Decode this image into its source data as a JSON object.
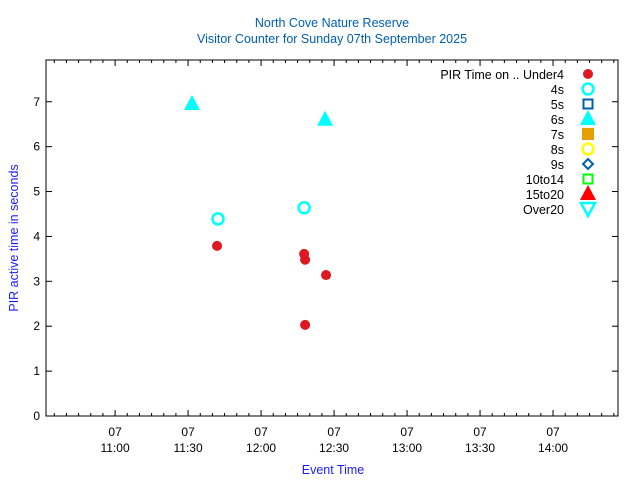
{
  "chart_data": {
    "type": "scatter",
    "title": "North Cove Nature Reserve",
    "subtitle": "Visitor Counter for Sunday 07th September 2025",
    "xlabel": "Event Time",
    "ylabel": "PIR active time in seconds",
    "legend_title": "PIR Time on ..",
    "legend_placement": "top-right",
    "xlim_minutes_from_11": [
      -28.4,
      206.7
    ],
    "ylim": [
      0,
      7.93
    ],
    "yticks": [
      0,
      1,
      2,
      3,
      4,
      5,
      6,
      7
    ],
    "xticks": [
      {
        "minutes": 0,
        "day": "07",
        "time": "11:00"
      },
      {
        "minutes": 30,
        "day": "07",
        "time": "11:30"
      },
      {
        "minutes": 60,
        "day": "07",
        "time": "12:00"
      },
      {
        "minutes": 90,
        "day": "07",
        "time": "12:30"
      },
      {
        "minutes": 120,
        "day": "07",
        "time": "13:00"
      },
      {
        "minutes": 150,
        "day": "07",
        "time": "13:30"
      },
      {
        "minutes": 180,
        "day": "07",
        "time": "14:00"
      }
    ],
    "series": [
      {
        "name": "Under4",
        "color": "#dd181f",
        "marker": "filled-circle",
        "points": [
          [
            41.9,
            3.79
          ],
          [
            77.7,
            3.61
          ],
          [
            78.1,
            3.48
          ],
          [
            86.7,
            3.14
          ],
          [
            78.1,
            2.03
          ]
        ]
      },
      {
        "name": "4s",
        "color": "#00ffff",
        "marker": "open-circle",
        "points": [
          [
            42.3,
            4.39
          ],
          [
            77.7,
            4.64
          ]
        ]
      },
      {
        "name": "5s",
        "color": "#0060ad",
        "marker": "open-square",
        "points": []
      },
      {
        "name": "6s",
        "color": "#00ffff",
        "marker": "filled-triangle",
        "points": [
          [
            31.6,
            6.95
          ],
          [
            86.3,
            6.6
          ]
        ]
      },
      {
        "name": "7s",
        "color": "#e69f00",
        "marker": "filled-square",
        "points": []
      },
      {
        "name": "8s",
        "color": "#ffff00",
        "marker": "open-circle",
        "points": []
      },
      {
        "name": "9s",
        "color": "#0060ad",
        "marker": "open-diamond",
        "points": []
      },
      {
        "name": "10to14",
        "color": "#00ff00",
        "marker": "open-square",
        "points": []
      },
      {
        "name": "15to20",
        "color": "#ff0000",
        "marker": "filled-triangle",
        "points": []
      },
      {
        "name": "Over20",
        "color": "#00ffff",
        "marker": "open-down-triangle",
        "points": []
      }
    ]
  }
}
